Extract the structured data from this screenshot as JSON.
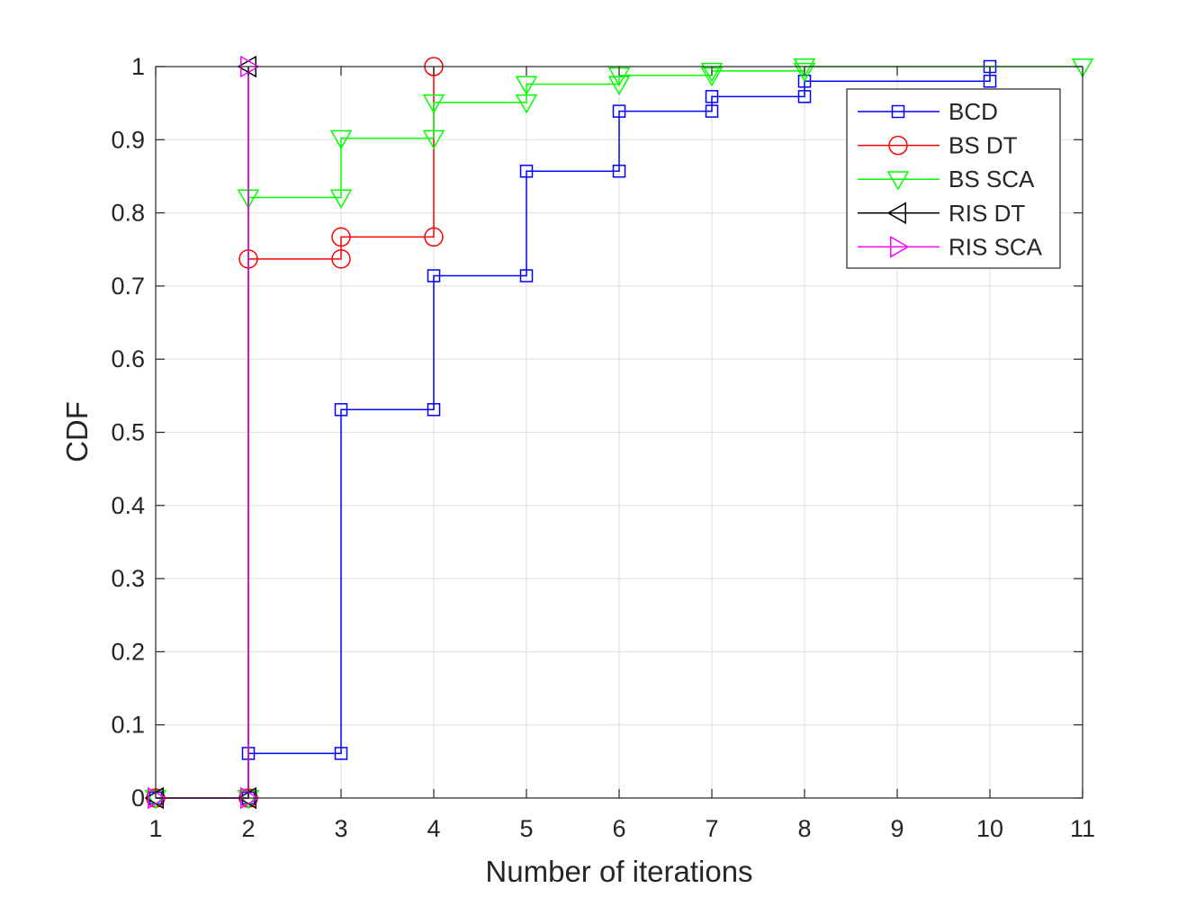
{
  "chart_data": {
    "type": "line",
    "line_style": "stairs",
    "title": "",
    "xlabel": "Number of iterations",
    "ylabel": "CDF",
    "xlim": [
      1,
      11
    ],
    "ylim": [
      0,
      1
    ],
    "x_ticks": [
      1,
      2,
      3,
      4,
      5,
      6,
      7,
      8,
      9,
      10,
      11
    ],
    "x_tick_labels": [
      "1",
      "2",
      "3",
      "4",
      "5",
      "6",
      "7",
      "8",
      "9",
      "10",
      "11"
    ],
    "y_ticks": [
      0,
      0.1,
      0.2,
      0.3,
      0.4,
      0.5,
      0.6,
      0.7,
      0.8,
      0.9,
      1
    ],
    "y_tick_labels": [
      "0",
      "0.1",
      "0.2",
      "0.3",
      "0.4",
      "0.5",
      "0.6",
      "0.7",
      "0.8",
      "0.9",
      "1"
    ],
    "grid": true,
    "legend_position": "top-right",
    "series": [
      {
        "name": "BCD",
        "color": "#0000ff",
        "marker": "square",
        "x": [
          1,
          2,
          2,
          3,
          3,
          4,
          4,
          5,
          5,
          6,
          6,
          7,
          7,
          8,
          8,
          10,
          10
        ],
        "y": [
          0,
          0,
          0.061,
          0.061,
          0.531,
          0.531,
          0.714,
          0.714,
          0.857,
          0.857,
          0.939,
          0.939,
          0.959,
          0.959,
          0.98,
          0.98,
          1.0
        ]
      },
      {
        "name": "BS DT",
        "color": "#ff0000",
        "marker": "circle",
        "x": [
          1,
          2,
          2,
          3,
          3,
          4,
          4
        ],
        "y": [
          0,
          0,
          0.737,
          0.737,
          0.767,
          0.767,
          1.0
        ]
      },
      {
        "name": "BS SCA",
        "color": "#00ff00",
        "marker": "triangle-down",
        "x": [
          1,
          2,
          2,
          3,
          3,
          4,
          4,
          5,
          5,
          6,
          6,
          7,
          7,
          8,
          8,
          11
        ],
        "y": [
          0,
          0,
          0.821,
          0.821,
          0.902,
          0.902,
          0.951,
          0.951,
          0.976,
          0.976,
          0.988,
          0.988,
          0.994,
          0.994,
          1.0,
          1.0
        ]
      },
      {
        "name": "RIS DT",
        "color": "#000000",
        "marker": "triangle-left",
        "x": [
          1,
          2,
          2
        ],
        "y": [
          0,
          0,
          1.0
        ]
      },
      {
        "name": "RIS SCA",
        "color": "#ff00ff",
        "marker": "triangle-right",
        "x": [
          1,
          2,
          2
        ],
        "y": [
          0,
          0,
          1.0
        ]
      }
    ]
  }
}
